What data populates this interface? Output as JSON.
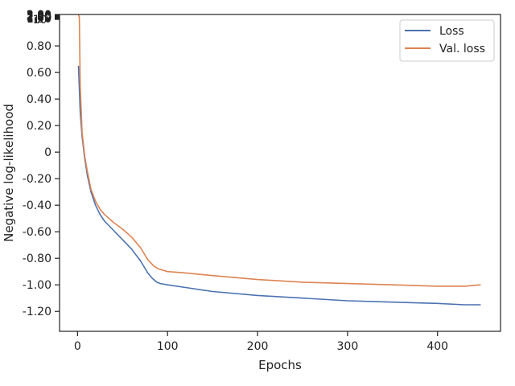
{
  "chart_data": {
    "type": "line",
    "xlabel": "Epochs",
    "ylabel": "Negative log-likelihood",
    "xlim": [
      -20,
      470
    ],
    "x_ticks": [
      0,
      100,
      200,
      300,
      400
    ],
    "y_scale": "symlog",
    "ylim": [
      -1.35,
      3.02
    ],
    "y_ticks": [
      {
        "value": 3.0,
        "label": "3.00"
      },
      {
        "value": 2.8,
        "label": "2.80"
      },
      {
        "value": 2.6,
        "label": "2.60"
      },
      {
        "value": 2.4,
        "label": "2.40"
      },
      {
        "value": 2.2,
        "label": "2.20"
      },
      {
        "value": 2.0,
        "label": "2.00"
      },
      {
        "value": 1.8,
        "label": "1.80"
      },
      {
        "value": 1.6,
        "label": "1.60"
      },
      {
        "value": 1.4,
        "label": "1.40"
      },
      {
        "value": 1.2,
        "label": "1.20"
      },
      {
        "value": 1.0,
        "label": "10⁰"
      },
      {
        "value": 0.8,
        "label": "0.80"
      },
      {
        "value": 0.6,
        "label": "0.60"
      },
      {
        "value": 0.4,
        "label": "0.40"
      },
      {
        "value": 0.2,
        "label": "0.20"
      },
      {
        "value": 0.0,
        "label": "0"
      },
      {
        "value": -0.2,
        "label": "-0.20"
      },
      {
        "value": -0.4,
        "label": "-0.40"
      },
      {
        "value": -0.6,
        "label": "-0.60"
      },
      {
        "value": -0.8,
        "label": "-0.80"
      },
      {
        "value": -1.0,
        "label": "-1.00"
      },
      {
        "value": -1.2,
        "label": "-1.20"
      }
    ],
    "grid": false,
    "legend_position": "top-right",
    "series": [
      {
        "name": "Loss",
        "color": "#4c72b0",
        "x": [
          1,
          3,
          5,
          8,
          11,
          15,
          20,
          25,
          30,
          40,
          50,
          60,
          70,
          78,
          83,
          88,
          92,
          100,
          120,
          150,
          200,
          250,
          300,
          350,
          400,
          430,
          448
        ],
        "y": [
          0.65,
          0.3,
          0.12,
          -0.05,
          -0.18,
          -0.3,
          -0.4,
          -0.47,
          -0.52,
          -0.59,
          -0.66,
          -0.73,
          -0.82,
          -0.91,
          -0.95,
          -0.98,
          -0.99,
          -1.0,
          -1.02,
          -1.05,
          -1.08,
          -1.1,
          -1.12,
          -1.13,
          -1.14,
          -1.15,
          -1.15
        ]
      },
      {
        "name": "Val. loss",
        "color": "#dd8452",
        "x": [
          1,
          2,
          3,
          5,
          8,
          11,
          15,
          20,
          25,
          30,
          40,
          50,
          60,
          70,
          78,
          85,
          90,
          100,
          120,
          150,
          200,
          250,
          300,
          350,
          400,
          430,
          448
        ],
        "y": [
          3.0,
          1.5,
          0.5,
          0.15,
          -0.03,
          -0.15,
          -0.28,
          -0.37,
          -0.43,
          -0.47,
          -0.53,
          -0.58,
          -0.64,
          -0.72,
          -0.81,
          -0.86,
          -0.88,
          -0.9,
          -0.91,
          -0.93,
          -0.96,
          -0.98,
          -0.99,
          -1.0,
          -1.01,
          -1.01,
          -1.0
        ]
      }
    ]
  }
}
